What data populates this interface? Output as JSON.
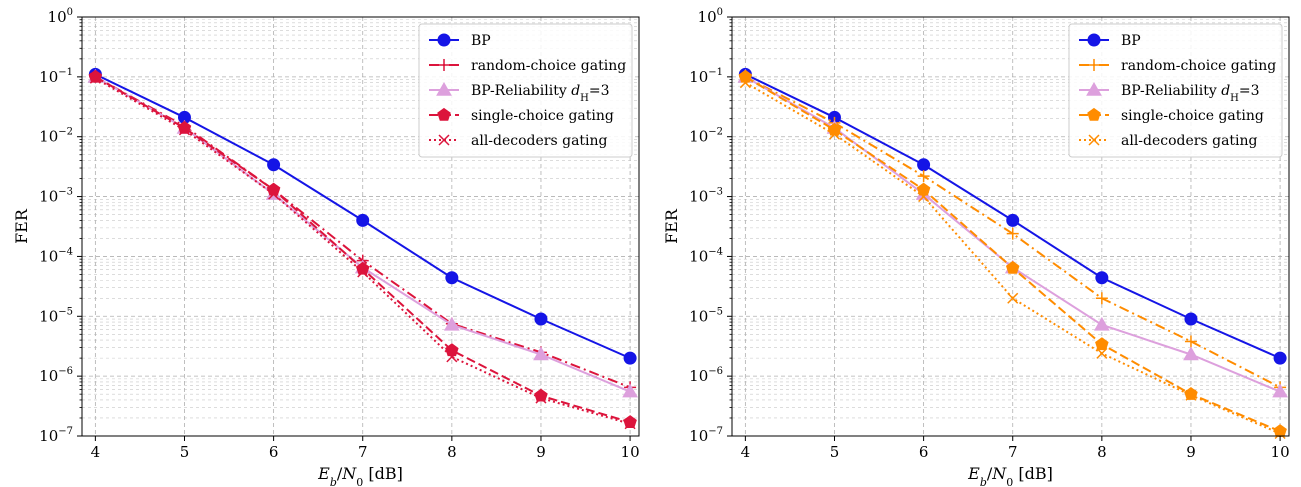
{
  "chart_data": [
    {
      "type": "line",
      "x_scale": "linear",
      "y_scale": "log",
      "xlabel": "E_b/N_0 [dB]",
      "ylabel": "FER",
      "xlim": [
        3.85,
        10.1
      ],
      "ylim": [
        1e-07,
        1
      ],
      "xticks": [
        4,
        5,
        6,
        7,
        8,
        9,
        10
      ],
      "y_decades": [
        -7,
        -6,
        -5,
        -4,
        -3,
        -2,
        -1,
        0
      ],
      "grid": true,
      "legend_position": "top-right",
      "series": [
        {
          "name": "BP",
          "color": "#1515e6",
          "line": "solid",
          "marker": "circle",
          "x": [
            4,
            5,
            6,
            7,
            8,
            9,
            10
          ],
          "y": [
            0.11,
            0.021,
            0.0034,
            0.0004,
            4.4e-05,
            9e-06,
            2e-06
          ]
        },
        {
          "name": "random-choice gating",
          "color": "#dc143c",
          "line": "dashdot",
          "marker": "plus",
          "x": [
            4,
            5,
            6,
            7,
            8,
            9,
            10
          ],
          "y": [
            0.1,
            0.015,
            0.0013,
            8.5e-05,
            7.5e-06,
            2.5e-06,
            6.5e-07
          ]
        },
        {
          "name": "BP-Reliability d_H=3",
          "color": "#dda0dd",
          "line": "solid",
          "marker": "triangle",
          "x": [
            4,
            5,
            6,
            7,
            8,
            9,
            10
          ],
          "y": [
            0.1,
            0.014,
            0.0011,
            6.5e-05,
            7.2e-06,
            2.3e-06,
            5.5e-07
          ]
        },
        {
          "name": "single-choice gating",
          "color": "#dc143c",
          "line": "dashed",
          "marker": "pentagon",
          "x": [
            4,
            5,
            6,
            7,
            8,
            9,
            10
          ],
          "y": [
            0.1,
            0.014,
            0.0013,
            6.2e-05,
            2.7e-06,
            4.7e-07,
            1.7e-07
          ]
        },
        {
          "name": "all-decoders gating",
          "color": "#dc143c",
          "line": "dotted",
          "marker": "x",
          "x": [
            4,
            5,
            6,
            7,
            8,
            9,
            10
          ],
          "y": [
            0.095,
            0.013,
            0.0011,
            5.5e-05,
            2.1e-06,
            4.3e-07,
            1.6e-07
          ]
        }
      ]
    },
    {
      "type": "line",
      "x_scale": "linear",
      "y_scale": "log",
      "xlabel": "E_b/N_0 [dB]",
      "ylabel": "FER",
      "xlim": [
        3.85,
        10.1
      ],
      "ylim": [
        1e-07,
        1
      ],
      "xticks": [
        4,
        5,
        6,
        7,
        8,
        9,
        10
      ],
      "y_decades": [
        -7,
        -6,
        -5,
        -4,
        -3,
        -2,
        -1,
        0
      ],
      "grid": true,
      "legend_position": "top-right",
      "series": [
        {
          "name": "BP",
          "color": "#1515e6",
          "line": "solid",
          "marker": "circle",
          "x": [
            4,
            5,
            6,
            7,
            8,
            9,
            10
          ],
          "y": [
            0.11,
            0.021,
            0.0034,
            0.0004,
            4.4e-05,
            9e-06,
            2e-06
          ]
        },
        {
          "name": "random-choice gating",
          "color": "#ff8c00",
          "line": "dashdot",
          "marker": "plus",
          "x": [
            4,
            5,
            6,
            7,
            8,
            9,
            10
          ],
          "y": [
            0.1,
            0.017,
            0.0022,
            0.00024,
            2e-05,
            3.8e-06,
            6.5e-07
          ]
        },
        {
          "name": "BP-Reliability d_H=3",
          "color": "#dda0dd",
          "line": "solid",
          "marker": "triangle",
          "x": [
            4,
            5,
            6,
            7,
            8,
            9,
            10
          ],
          "y": [
            0.1,
            0.014,
            0.0011,
            6.5e-05,
            7.2e-06,
            2.3e-06,
            5.5e-07
          ]
        },
        {
          "name": "single-choice gating",
          "color": "#ff8c00",
          "line": "dashed",
          "marker": "pentagon",
          "x": [
            4,
            5,
            6,
            7,
            8,
            9,
            10
          ],
          "y": [
            0.1,
            0.013,
            0.0013,
            6.4e-05,
            3.4e-06,
            5e-07,
            1.2e-07
          ]
        },
        {
          "name": "all-decoders gating",
          "color": "#ff8c00",
          "line": "dotted",
          "marker": "x",
          "x": [
            4,
            5,
            6,
            7,
            8,
            9,
            10
          ],
          "y": [
            0.08,
            0.011,
            0.001,
            2e-05,
            2.4e-06,
            4.8e-07,
            1.1e-07
          ]
        }
      ]
    }
  ]
}
